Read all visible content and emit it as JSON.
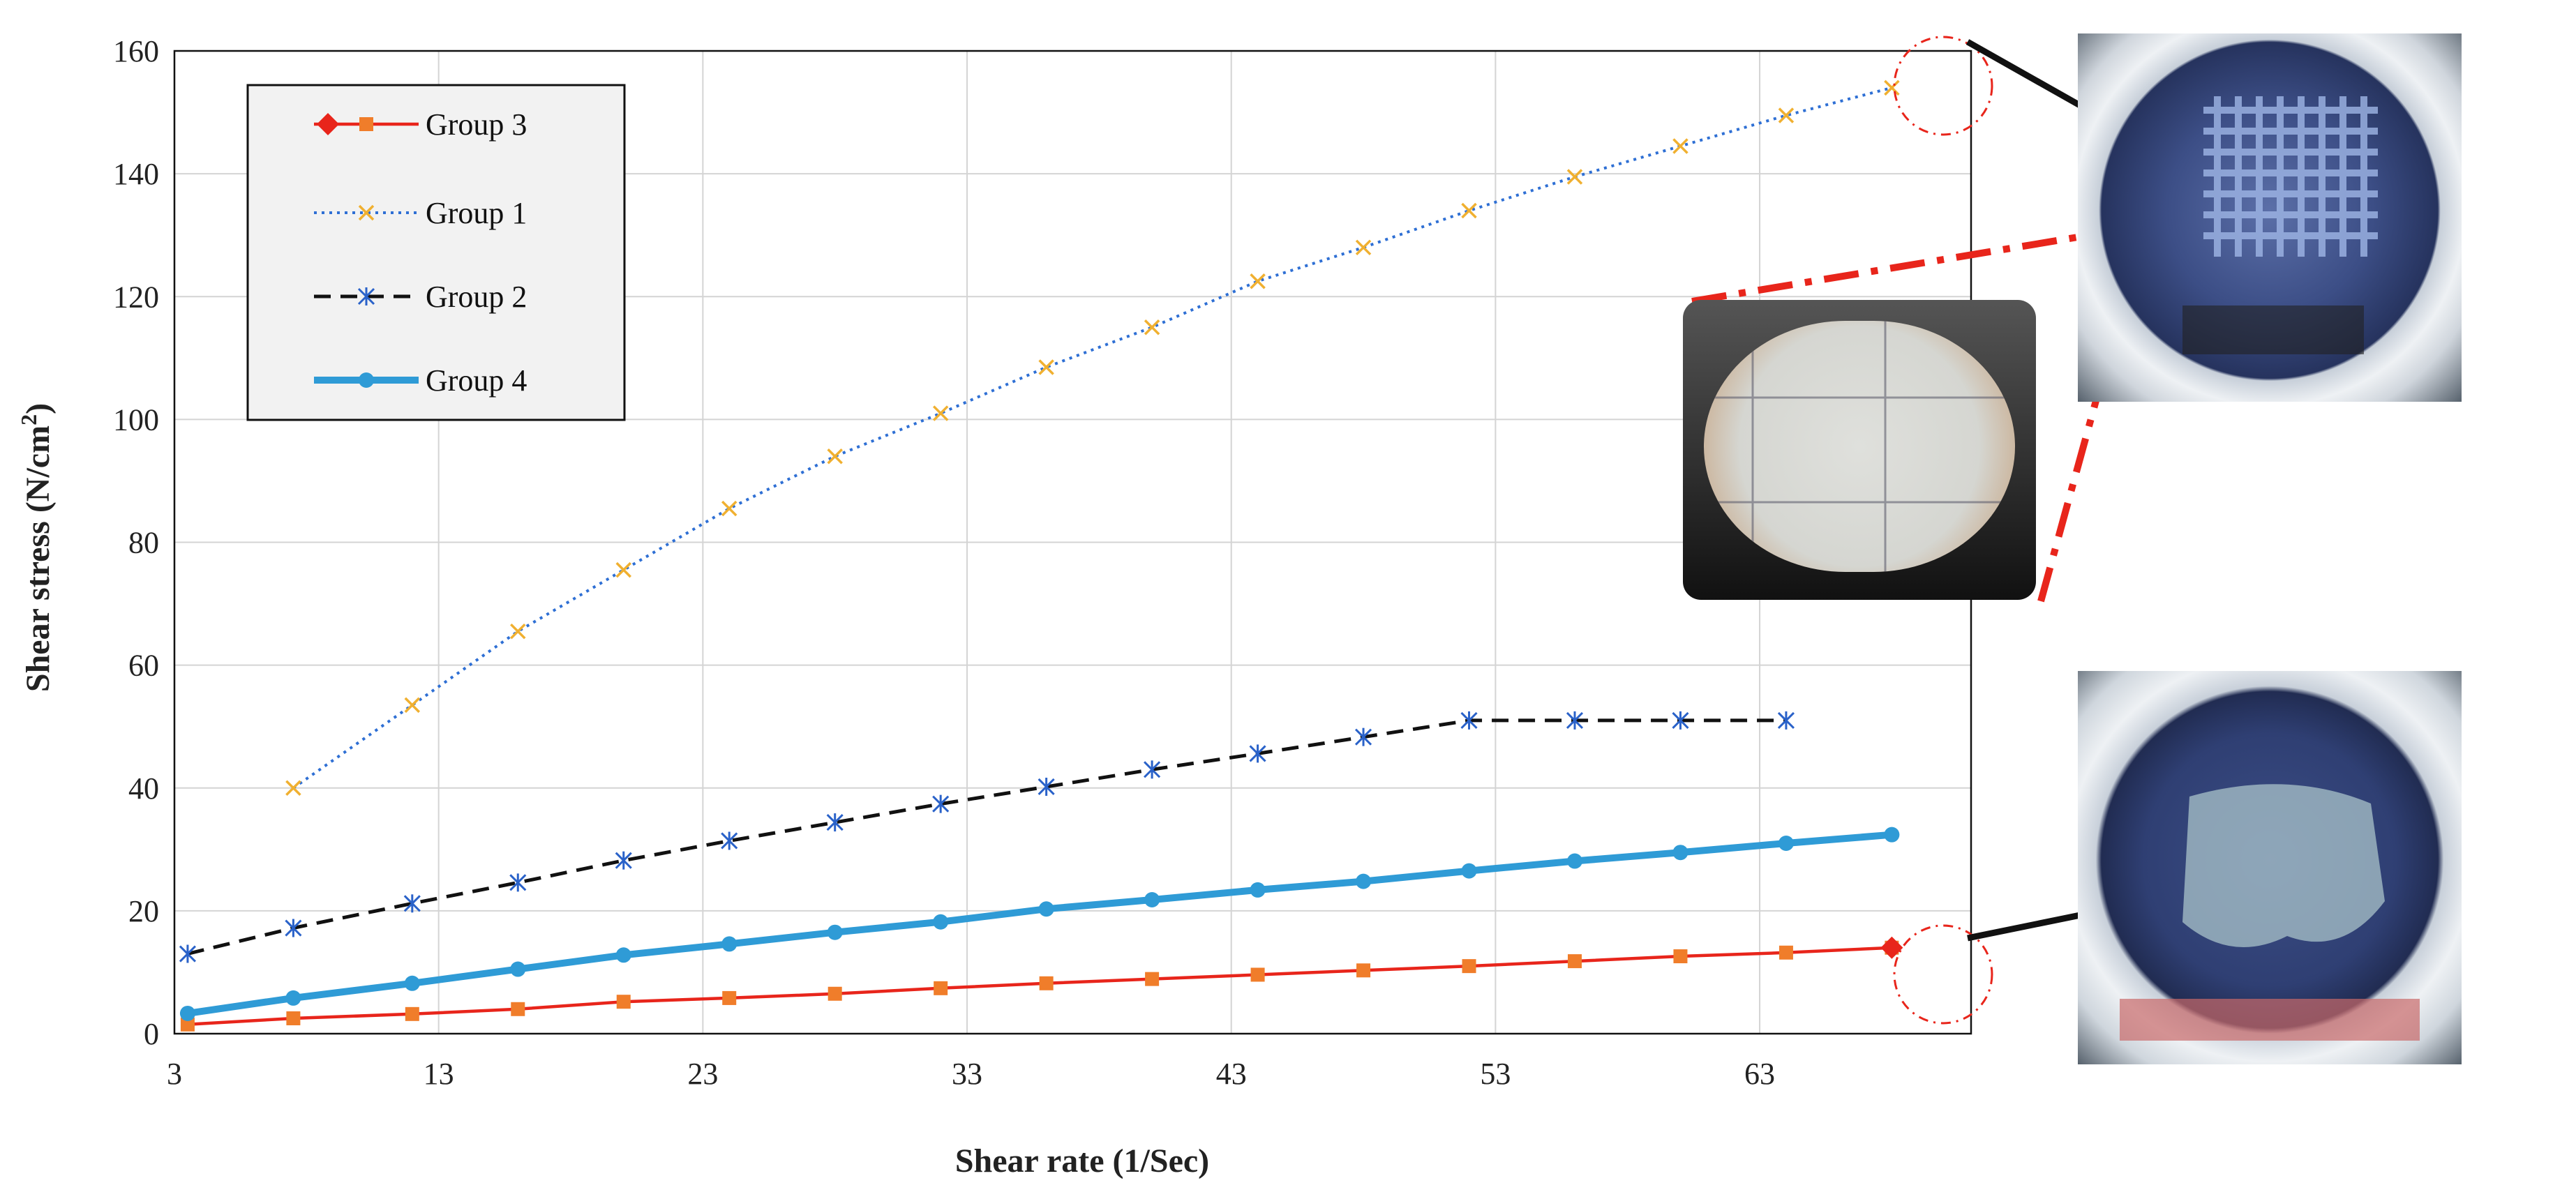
{
  "chart_data": {
    "type": "line",
    "title": "",
    "xlabel": "Shear rate (1/Sec)",
    "ylabel_main": "Shear stress (N/cm",
    "ylabel_sup": "2",
    "ylabel_end": ")",
    "xlim": [
      3,
      71
    ],
    "ylim": [
      0,
      160
    ],
    "xticks": [
      3,
      13,
      23,
      33,
      43,
      53,
      63
    ],
    "yticks": [
      0,
      20,
      40,
      60,
      80,
      100,
      120,
      140,
      160
    ],
    "grid": true,
    "legend_position": "top-left",
    "series": [
      {
        "name": "Group 3",
        "color": "#e8251b",
        "marker": "square",
        "marker_color": "#f07d2a",
        "line": "solid",
        "x": [
          3.5,
          7.5,
          12,
          16,
          20,
          24,
          28,
          32,
          36,
          40,
          44,
          48,
          52,
          56,
          60,
          64,
          68
        ],
        "y": [
          1.5,
          2.5,
          3.2,
          4,
          5.2,
          5.8,
          6.5,
          7.4,
          8.2,
          8.9,
          9.6,
          10.3,
          11,
          11.8,
          12.6,
          13.2,
          14
        ]
      },
      {
        "name": "Group 1",
        "color": "#2e6fd4",
        "marker": "x",
        "marker_color": "#f0b030",
        "line": "dotted",
        "x": [
          7.5,
          12,
          16,
          20,
          24,
          28,
          32,
          36,
          40,
          44,
          48,
          52,
          56,
          60,
          64,
          68
        ],
        "y": [
          40,
          53.5,
          65.5,
          75.5,
          85.5,
          94,
          101,
          108.5,
          115,
          122.5,
          128,
          134,
          139.5,
          144.5,
          149.5,
          154
        ]
      },
      {
        "name": "Group 2",
        "color": "#111111",
        "marker": "star",
        "marker_color": "#2a62c9",
        "line": "dashed",
        "x": [
          3.5,
          7.5,
          12,
          16,
          20,
          24,
          28,
          32,
          36,
          40,
          44,
          48,
          52,
          56,
          60,
          64
        ],
        "y": [
          13,
          17.2,
          21.2,
          24.6,
          28.2,
          31.4,
          34.4,
          37.4,
          40.2,
          43,
          45.6,
          48.3,
          51,
          51,
          51,
          51
        ]
      },
      {
        "name": "Group 4",
        "color": "#2f9bd6",
        "marker": "circle",
        "marker_color": "#2f9bd6",
        "line": "thick",
        "x": [
          3.5,
          7.5,
          12,
          16,
          20,
          24,
          28,
          32,
          36,
          40,
          44,
          48,
          52,
          56,
          60,
          64,
          68
        ],
        "y": [
          3.3,
          5.8,
          8.2,
          10.5,
          12.8,
          14.6,
          16.5,
          18.2,
          20.3,
          21.8,
          23.4,
          24.8,
          26.5,
          28.1,
          29.5,
          31,
          32.4
        ]
      }
    ]
  },
  "images": {
    "top_photo": "printed-grid-scaffold-photo",
    "micro_inset": "microscope-grid-inset",
    "bottom_photo": "collapsed-hydrogel-photo"
  }
}
